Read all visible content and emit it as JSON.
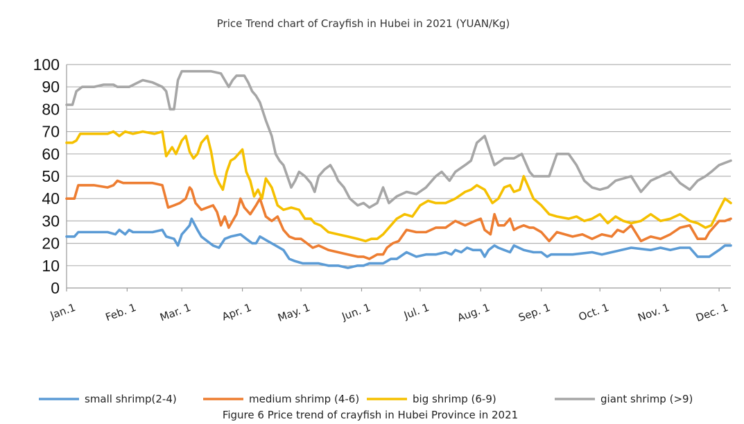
{
  "chart_data": {
    "type": "line",
    "title": "Price Trend chart of Crayfish in Hubei in 2021 (YUAN/Kg)",
    "caption": "Figure 6 Price trend of crayfish in Hubei Province in 2021",
    "xlabel": "",
    "ylabel": "",
    "ylim": [
      0,
      100
    ],
    "yticks": [
      0,
      10,
      20,
      30,
      40,
      50,
      60,
      70,
      80,
      90,
      100
    ],
    "grid": true,
    "legend_position": "bottom",
    "xtick_labels": [
      "Jan.1",
      "Feb. 1",
      "Mar. 1",
      "Apr. 1",
      "May. 1",
      "Jun. 1",
      "Jul. 1",
      "Aug. 1",
      "Sep. 1",
      "Oct. 1",
      "Nov. 1",
      "Dec. 1"
    ],
    "xtick_days": [
      1,
      32,
      60,
      91,
      121,
      152,
      182,
      213,
      244,
      274,
      305,
      335
    ],
    "x_range_days": [
      1,
      341
    ],
    "series": [
      {
        "name": "small shrimp(2-4)",
        "color": "#5b9bd5",
        "x": [
          1,
          5,
          7,
          15,
          22,
          26,
          28,
          31,
          33,
          35,
          38,
          45,
          50,
          52,
          56,
          58,
          60,
          62,
          64,
          65,
          68,
          70,
          73,
          76,
          79,
          82,
          85,
          90,
          93,
          96,
          98,
          100,
          104,
          108,
          112,
          115,
          118,
          122,
          126,
          130,
          135,
          140,
          145,
          150,
          153,
          156,
          160,
          163,
          165,
          167,
          170,
          175,
          180,
          185,
          190,
          195,
          198,
          200,
          203,
          206,
          209,
          213,
          215,
          217,
          220,
          222,
          225,
          228,
          230,
          235,
          240,
          244,
          247,
          249,
          252,
          260,
          270,
          275,
          280,
          285,
          290,
          300,
          305,
          310,
          315,
          320,
          324,
          330,
          335,
          338,
          341
        ],
        "values": [
          23,
          23,
          25,
          25,
          25,
          24,
          26,
          24,
          26,
          25,
          25,
          25,
          26,
          23,
          22,
          19,
          24,
          26,
          28,
          31,
          26,
          23,
          21,
          19,
          18,
          22,
          23,
          24,
          22,
          20,
          20,
          23,
          21,
          19,
          17,
          13,
          12,
          11,
          11,
          11,
          10,
          10,
          9,
          10,
          10,
          11,
          11,
          11,
          12,
          13,
          13,
          16,
          14,
          15,
          15,
          16,
          15,
          17,
          16,
          18,
          17,
          17,
          14,
          17,
          19,
          18,
          17,
          16,
          19,
          17,
          16,
          16,
          14,
          15,
          15,
          15,
          16,
          15,
          16,
          17,
          18,
          17,
          18,
          17,
          18,
          18,
          14,
          14,
          17,
          19,
          19
        ]
      },
      {
        "name": "medium shrimp (4-6)",
        "color": "#ed7d31",
        "x": [
          1,
          5,
          7,
          15,
          22,
          25,
          27,
          30,
          32,
          40,
          45,
          50,
          53,
          56,
          59,
          62,
          64,
          65,
          67,
          70,
          73,
          76,
          78,
          80,
          82,
          84,
          86,
          88,
          90,
          92,
          95,
          98,
          100,
          103,
          106,
          109,
          112,
          115,
          118,
          121,
          124,
          127,
          130,
          135,
          140,
          145,
          150,
          153,
          156,
          160,
          163,
          165,
          168,
          171,
          175,
          180,
          185,
          190,
          195,
          200,
          205,
          210,
          213,
          215,
          218,
          220,
          222,
          225,
          228,
          230,
          232,
          235,
          238,
          240,
          244,
          248,
          252,
          260,
          265,
          270,
          275,
          280,
          283,
          286,
          290,
          295,
          300,
          305,
          310,
          315,
          320,
          324,
          328,
          330,
          335,
          338,
          341
        ],
        "values": [
          40,
          40,
          46,
          46,
          45,
          46,
          48,
          47,
          47,
          47,
          47,
          46,
          36,
          37,
          38,
          40,
          45,
          44,
          38,
          35,
          36,
          37,
          34,
          28,
          32,
          27,
          30,
          33,
          40,
          36,
          33,
          37,
          40,
          32,
          30,
          32,
          26,
          23,
          22,
          22,
          20,
          18,
          19,
          17,
          16,
          15,
          14,
          14,
          13,
          15,
          15,
          18,
          20,
          21,
          26,
          25,
          25,
          27,
          27,
          30,
          28,
          30,
          31,
          26,
          24,
          33,
          28,
          28,
          31,
          26,
          27,
          28,
          27,
          27,
          25,
          21,
          25,
          23,
          24,
          22,
          24,
          23,
          26,
          25,
          28,
          21,
          23,
          22,
          24,
          27,
          28,
          22,
          22,
          25,
          30,
          30,
          31
        ]
      },
      {
        "name": "big shrimp (6-9)",
        "color": "#f5c000",
        "x": [
          1,
          4,
          6,
          8,
          15,
          22,
          25,
          28,
          31,
          35,
          40,
          46,
          50,
          52,
          55,
          57,
          60,
          62,
          64,
          66,
          68,
          70,
          73,
          75,
          77,
          79,
          81,
          83,
          85,
          87,
          89,
          91,
          93,
          95,
          97,
          99,
          101,
          103,
          106,
          109,
          112,
          116,
          120,
          123,
          126,
          128,
          131,
          135,
          140,
          145,
          150,
          154,
          157,
          160,
          163,
          166,
          170,
          174,
          178,
          182,
          186,
          190,
          195,
          200,
          205,
          208,
          211,
          215,
          219,
          222,
          225,
          228,
          230,
          233,
          235,
          238,
          240,
          244,
          248,
          252,
          258,
          262,
          266,
          270,
          274,
          278,
          282,
          286,
          290,
          295,
          300,
          305,
          310,
          315,
          320,
          324,
          328,
          331,
          335,
          338,
          341
        ],
        "values": [
          65,
          65,
          66,
          69,
          69,
          69,
          70,
          68,
          70,
          69,
          70,
          69,
          70,
          59,
          63,
          60,
          66,
          68,
          61,
          58,
          60,
          65,
          68,
          61,
          51,
          47,
          44,
          52,
          57,
          58,
          60,
          62,
          52,
          48,
          41,
          44,
          40,
          49,
          45,
          37,
          35,
          36,
          35,
          31,
          31,
          29,
          28,
          25,
          24,
          23,
          22,
          21,
          22,
          22,
          24,
          27,
          31,
          33,
          32,
          37,
          39,
          38,
          38,
          40,
          43,
          44,
          46,
          44,
          38,
          40,
          45,
          46,
          43,
          44,
          50,
          44,
          40,
          37,
          33,
          32,
          31,
          32,
          30,
          31,
          33,
          29,
          32,
          30,
          29,
          30,
          33,
          30,
          31,
          33,
          30,
          29,
          27,
          28,
          35,
          40,
          38
        ]
      },
      {
        "name": "giant shrimp (>9)",
        "color": "#a6a6a6",
        "x": [
          1,
          4,
          6,
          9,
          15,
          20,
          25,
          27,
          30,
          33,
          40,
          45,
          50,
          52,
          54,
          56,
          58,
          60,
          62,
          64,
          66,
          70,
          75,
          80,
          84,
          86,
          88,
          90,
          92,
          94,
          96,
          98,
          100,
          103,
          106,
          108,
          110,
          112,
          114,
          116,
          118,
          120,
          123,
          126,
          128,
          130,
          133,
          136,
          138,
          140,
          143,
          146,
          150,
          153,
          156,
          160,
          163,
          166,
          170,
          175,
          180,
          185,
          190,
          193,
          197,
          200,
          205,
          208,
          211,
          215,
          220,
          225,
          230,
          234,
          238,
          240,
          244,
          248,
          252,
          258,
          262,
          266,
          270,
          274,
          278,
          282,
          286,
          290,
          295,
          300,
          305,
          310,
          315,
          320,
          324,
          328,
          331,
          335,
          338,
          341
        ],
        "values": [
          82,
          82,
          88,
          90,
          90,
          91,
          91,
          90,
          90,
          90,
          93,
          92,
          90,
          88,
          80,
          80,
          93,
          97,
          97,
          97,
          97,
          97,
          97,
          96,
          90,
          93,
          95,
          95,
          95,
          92,
          88,
          86,
          83,
          75,
          68,
          60,
          57,
          55,
          50,
          45,
          48,
          52,
          50,
          47,
          43,
          50,
          53,
          55,
          52,
          48,
          45,
          40,
          37,
          38,
          36,
          38,
          45,
          38,
          41,
          43,
          42,
          45,
          50,
          52,
          48,
          52,
          55,
          57,
          65,
          68,
          55,
          58,
          58,
          60,
          52,
          50,
          50,
          50,
          60,
          60,
          55,
          48,
          45,
          44,
          45,
          48,
          49,
          50,
          43,
          48,
          50,
          52,
          47,
          44,
          48,
          50,
          52,
          55,
          56,
          57
        ]
      }
    ]
  }
}
